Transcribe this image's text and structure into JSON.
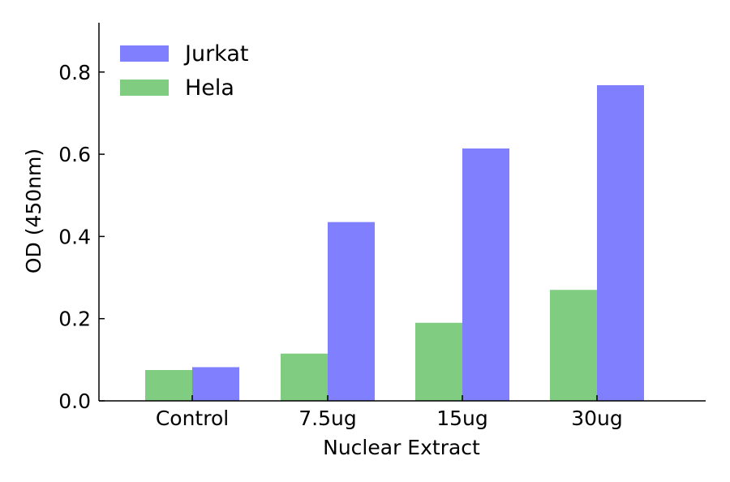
{
  "chart_data": {
    "type": "bar",
    "categories": [
      "Control",
      "7.5ug",
      "15ug",
      "30ug"
    ],
    "series": [
      {
        "name": "Hela",
        "color": "#80cc80",
        "values": [
          0.075,
          0.115,
          0.19,
          0.27
        ]
      },
      {
        "name": "Jurkat",
        "color": "#8080ff",
        "values": [
          0.082,
          0.435,
          0.614,
          0.768
        ]
      }
    ],
    "xlabel": "Nuclear Extract",
    "ylabel": "OD (450nm)",
    "ylim": [
      0,
      0.92
    ],
    "yticks": [
      "0.0",
      "0.2",
      "0.4",
      "0.6",
      "0.8"
    ],
    "legend": {
      "position": "top-left",
      "order": [
        "Jurkat",
        "Hela"
      ]
    },
    "grid": false
  }
}
